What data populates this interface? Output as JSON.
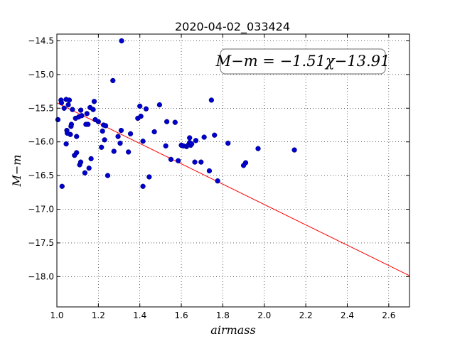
{
  "chart_data": {
    "type": "scatter",
    "title": "2020-04-02_033424",
    "xlabel": "airmass",
    "ylabel": "M−m",
    "xlim": [
      1.0,
      2.7
    ],
    "ylim": [
      -18.45,
      -14.4
    ],
    "y_inverted": true,
    "grid": true,
    "x_ticks": [
      1.0,
      1.2,
      1.4,
      1.6,
      1.8,
      2.0,
      2.2,
      2.4,
      2.6
    ],
    "x_tick_labels": [
      "1.0",
      "1.2",
      "1.4",
      "1.6",
      "1.8",
      "2.0",
      "2.2",
      "2.4",
      "2.6"
    ],
    "y_ticks": [
      -14.5,
      -15.0,
      -15.5,
      -16.0,
      -16.5,
      -17.0,
      -17.5,
      -18.0
    ],
    "y_tick_labels": [
      "−14.5",
      "−15.0",
      "−15.5",
      "−16.0",
      "−16.5",
      "−17.0",
      "−17.5",
      "−18.0"
    ],
    "annotation": "M−m = −1.51χ−13.91",
    "fit": {
      "slope": -1.51,
      "intercept": -13.91,
      "color": "#ff0000"
    },
    "point_color": "#0000cc",
    "points": [
      [
        1.005,
        -15.67
      ],
      [
        1.02,
        -15.38
      ],
      [
        1.022,
        -15.42
      ],
      [
        1.025,
        -16.66
      ],
      [
        1.035,
        -15.5
      ],
      [
        1.045,
        -15.37
      ],
      [
        1.045,
        -16.03
      ],
      [
        1.048,
        -15.83
      ],
      [
        1.05,
        -15.87
      ],
      [
        1.055,
        -15.45
      ],
      [
        1.06,
        -15.38
      ],
      [
        1.065,
        -15.89
      ],
      [
        1.068,
        -15.77
      ],
      [
        1.07,
        -15.74
      ],
      [
        1.075,
        -15.52
      ],
      [
        1.085,
        -16.2
      ],
      [
        1.09,
        -15.65
      ],
      [
        1.095,
        -16.16
      ],
      [
        1.095,
        -15.92
      ],
      [
        1.105,
        -15.63
      ],
      [
        1.11,
        -16.34
      ],
      [
        1.115,
        -16.3
      ],
      [
        1.115,
        -15.53
      ],
      [
        1.12,
        -15.61
      ],
      [
        1.135,
        -16.46
      ],
      [
        1.14,
        -15.74
      ],
      [
        1.145,
        -15.58
      ],
      [
        1.15,
        -15.74
      ],
      [
        1.155,
        -16.39
      ],
      [
        1.16,
        -15.49
      ],
      [
        1.165,
        -16.25
      ],
      [
        1.175,
        -15.52
      ],
      [
        1.18,
        -15.4
      ],
      [
        1.185,
        -15.67
      ],
      [
        1.2,
        -15.7
      ],
      [
        1.215,
        -16.08
      ],
      [
        1.22,
        -15.84
      ],
      [
        1.225,
        -15.75
      ],
      [
        1.23,
        -15.97
      ],
      [
        1.235,
        -15.76
      ],
      [
        1.245,
        -16.5
      ],
      [
        1.27,
        -15.09
      ],
      [
        1.275,
        -16.14
      ],
      [
        1.295,
        -15.92
      ],
      [
        1.305,
        -16.02
      ],
      [
        1.31,
        -15.83
      ],
      [
        1.312,
        -14.5
      ],
      [
        1.345,
        -16.15
      ],
      [
        1.355,
        -15.88
      ],
      [
        1.39,
        -15.65
      ],
      [
        1.4,
        -15.47
      ],
      [
        1.405,
        -15.62
      ],
      [
        1.415,
        -16.66
      ],
      [
        1.415,
        -15.99
      ],
      [
        1.43,
        -15.51
      ],
      [
        1.445,
        -16.52
      ],
      [
        1.47,
        -15.85
      ],
      [
        1.495,
        -15.45
      ],
      [
        1.525,
        -16.06
      ],
      [
        1.53,
        -15.7
      ],
      [
        1.55,
        -16.26
      ],
      [
        1.57,
        -15.71
      ],
      [
        1.585,
        -16.28
      ],
      [
        1.6,
        -16.05
      ],
      [
        1.61,
        -16.06
      ],
      [
        1.625,
        -16.07
      ],
      [
        1.635,
        -16.04
      ],
      [
        1.64,
        -15.94
      ],
      [
        1.64,
        -16.01
      ],
      [
        1.645,
        -16.05
      ],
      [
        1.65,
        -16.03
      ],
      [
        1.665,
        -16.3
      ],
      [
        1.67,
        -15.98
      ],
      [
        1.695,
        -16.3
      ],
      [
        1.71,
        -15.93
      ],
      [
        1.735,
        -16.43
      ],
      [
        1.745,
        -15.38
      ],
      [
        1.76,
        -15.9
      ],
      [
        1.775,
        -16.58
      ],
      [
        1.825,
        -16.02
      ],
      [
        1.9,
        -16.35
      ],
      [
        1.91,
        -16.31
      ],
      [
        1.97,
        -16.1
      ],
      [
        2.145,
        -16.12
      ]
    ]
  }
}
